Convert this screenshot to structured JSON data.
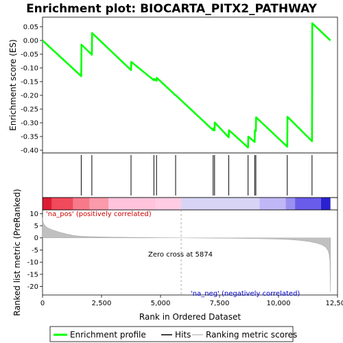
{
  "title": "Enrichment plot: BIOCARTA_PITX2_PATHWAY",
  "colors": {
    "es_line": "#00ff00",
    "hits": "#000000",
    "metric_fill": "#c0c0c0",
    "pos_text": "#cc0000",
    "neg_text": "#0000cc"
  },
  "legend": {
    "enrichment_profile": "Enrichment profile",
    "hits": "Hits",
    "ranking_metric_scores": "Ranking metric scores"
  },
  "chart_data": [
    {
      "type": "line",
      "panel": "enrichment-score",
      "ylabel": "Enrichment score (ES)",
      "xlim": [
        0,
        12500
      ],
      "ylim": [
        -0.41,
        0.085
      ],
      "yticks": [
        "0.05",
        "0.00",
        "-0.05",
        "-0.10",
        "-0.15",
        "-0.20",
        "-0.25",
        "-0.30",
        "-0.35",
        "-0.40"
      ],
      "grid": false,
      "series": [
        {
          "name": "Enrichment profile",
          "points": [
            [
              0,
              0.0
            ],
            [
              1640,
              -0.13
            ],
            [
              1650,
              -0.015
            ],
            [
              2090,
              -0.052
            ],
            [
              2100,
              0.027
            ],
            [
              3750,
              -0.108
            ],
            [
              3760,
              -0.078
            ],
            [
              4720,
              -0.145
            ],
            [
              4730,
              -0.14
            ],
            [
              4830,
              -0.147
            ],
            [
              4840,
              -0.136
            ],
            [
              5640,
              -0.2
            ],
            [
              5650,
              -0.2
            ],
            [
              7230,
              -0.327
            ],
            [
              7240,
              -0.32
            ],
            [
              7290,
              -0.328
            ],
            [
              7300,
              -0.299
            ],
            [
              7890,
              -0.353
            ],
            [
              7900,
              -0.327
            ],
            [
              8710,
              -0.39
            ],
            [
              8720,
              -0.35
            ],
            [
              8990,
              -0.37
            ],
            [
              9000,
              -0.327
            ],
            [
              9040,
              -0.33
            ],
            [
              9050,
              -0.28
            ],
            [
              10370,
              -0.387
            ],
            [
              10380,
              -0.278
            ],
            [
              11420,
              -0.367
            ],
            [
              11430,
              0.063
            ],
            [
              12200,
              0.0
            ]
          ]
        }
      ]
    },
    {
      "type": "scatter",
      "panel": "hits",
      "name": "Hits",
      "positions": [
        1640,
        2090,
        3750,
        4720,
        4830,
        5640,
        7230,
        7290,
        7890,
        8710,
        8990,
        9040,
        10370,
        11420
      ]
    },
    {
      "type": "heatmap",
      "panel": "rank-colorbar",
      "segments": [
        {
          "from": 0,
          "to": 400,
          "color": "#dd1c34"
        },
        {
          "from": 400,
          "to": 1300,
          "color": "#f04a5c"
        },
        {
          "from": 1300,
          "to": 2000,
          "color": "#f87a8a"
        },
        {
          "from": 2000,
          "to": 2800,
          "color": "#fb9aaa"
        },
        {
          "from": 2800,
          "to": 4800,
          "color": "#ffc4dc"
        },
        {
          "from": 4800,
          "to": 5874,
          "color": "#ffcce4"
        },
        {
          "from": 5874,
          "to": 9200,
          "color": "#d8d4f6"
        },
        {
          "from": 9200,
          "to": 10300,
          "color": "#c0b8f6"
        },
        {
          "from": 10300,
          "to": 10700,
          "color": "#9a90f0"
        },
        {
          "from": 10700,
          "to": 11800,
          "color": "#6a5cea"
        },
        {
          "from": 11800,
          "to": 12200,
          "color": "#2a22d0"
        }
      ]
    },
    {
      "type": "area",
      "panel": "ranked-metric",
      "name": "Ranking metric scores",
      "xlabel": "Rank in Ordered Dataset",
      "ylabel": "Ranked list metric (PreRanked)",
      "xlim": [
        0,
        12500
      ],
      "ylim": [
        -23.5,
        11.5
      ],
      "xticks": [
        "0",
        "2,500",
        "5,000",
        "7,500",
        "10,000",
        "12,500"
      ],
      "yticks": [
        "10",
        "5",
        "0",
        "-5",
        "-10",
        "-15",
        "-20"
      ],
      "zero_cross_rank": 5874,
      "points": [
        [
          0,
          8.3
        ],
        [
          30,
          6.2
        ],
        [
          100,
          5.0
        ],
        [
          200,
          4.2
        ],
        [
          400,
          3.3
        ],
        [
          700,
          2.4
        ],
        [
          1000,
          1.6
        ],
        [
          1300,
          1.0
        ],
        [
          1600,
          0.7
        ],
        [
          2000,
          0.5
        ],
        [
          2800,
          0.3
        ],
        [
          4000,
          0.15
        ],
        [
          5000,
          0.06
        ],
        [
          5874,
          0.0
        ],
        [
          7000,
          -0.08
        ],
        [
          8000,
          -0.18
        ],
        [
          9000,
          -0.3
        ],
        [
          9800,
          -0.45
        ],
        [
          10400,
          -0.65
        ],
        [
          10900,
          -1.0
        ],
        [
          11300,
          -1.5
        ],
        [
          11600,
          -2.1
        ],
        [
          11850,
          -2.9
        ],
        [
          12000,
          -3.8
        ],
        [
          12100,
          -5.2
        ],
        [
          12150,
          -7.0
        ],
        [
          12180,
          -9.5
        ],
        [
          12200,
          -22.3
        ]
      ],
      "annotations": {
        "pos": "'na_pos' (positively correlated)",
        "neg": "'na_neg' (negatively correlated)",
        "zero": "Zero cross at 5874"
      }
    }
  ]
}
